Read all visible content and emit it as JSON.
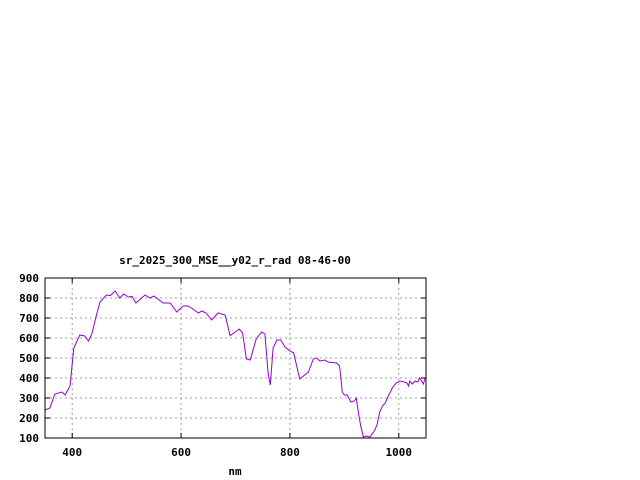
{
  "chart_data": {
    "type": "line",
    "title": "sr_2025_300_MSE__y02_r_rad 08-46-00",
    "xlabel": "nm",
    "ylabel": "",
    "xlim": [
      350,
      1050
    ],
    "ylim": [
      100,
      900
    ],
    "xticks": [
      400,
      600,
      800,
      1000
    ],
    "yticks": [
      100,
      200,
      300,
      400,
      500,
      600,
      700,
      800,
      900
    ],
    "grid": true,
    "line_color": "#9400d3",
    "series": [
      {
        "x": [
          350,
          359,
          368,
          381,
          387,
          396,
          403,
          414,
          423,
          430,
          436,
          445,
          451,
          463,
          470,
          479,
          487,
          495,
          503,
          510,
          517,
          534,
          543,
          550,
          567,
          580,
          592,
          604,
          613,
          619,
          632,
          638,
          646,
          656,
          668,
          681,
          690,
          707,
          713,
          720,
          727,
          738,
          748,
          754,
          760,
          764,
          769,
          776,
          783,
          791,
          800,
          807,
          818,
          834,
          843,
          849,
          855,
          864,
          870,
          886,
          891,
          893,
          896,
          900,
          905,
          912,
          918,
          922,
          925,
          930,
          935,
          940,
          947,
          955,
          960,
          965,
          970,
          975,
          980,
          988,
          995,
          1002,
          1010,
          1015,
          1018,
          1020,
          1025,
          1030,
          1035,
          1038,
          1042,
          1045,
          1048,
          1050
        ],
        "y": [
          240,
          250,
          320,
          330,
          315,
          360,
          550,
          615,
          610,
          585,
          620,
          720,
          780,
          815,
          812,
          835,
          800,
          820,
          805,
          808,
          775,
          815,
          800,
          810,
          775,
          775,
          730,
          760,
          760,
          750,
          725,
          735,
          725,
          690,
          725,
          715,
          612,
          645,
          625,
          495,
          490,
          595,
          630,
          620,
          420,
          365,
          550,
          590,
          590,
          555,
          535,
          525,
          395,
          430,
          495,
          500,
          485,
          490,
          480,
          475,
          460,
          420,
          330,
          315,
          315,
          280,
          285,
          300,
          240,
          160,
          105,
          110,
          105,
          135,
          165,
          230,
          260,
          275,
          305,
          350,
          375,
          385,
          380,
          375,
          360,
          385,
          370,
          385,
          380,
          400,
          385,
          370,
          395,
          405
        ]
      }
    ]
  }
}
